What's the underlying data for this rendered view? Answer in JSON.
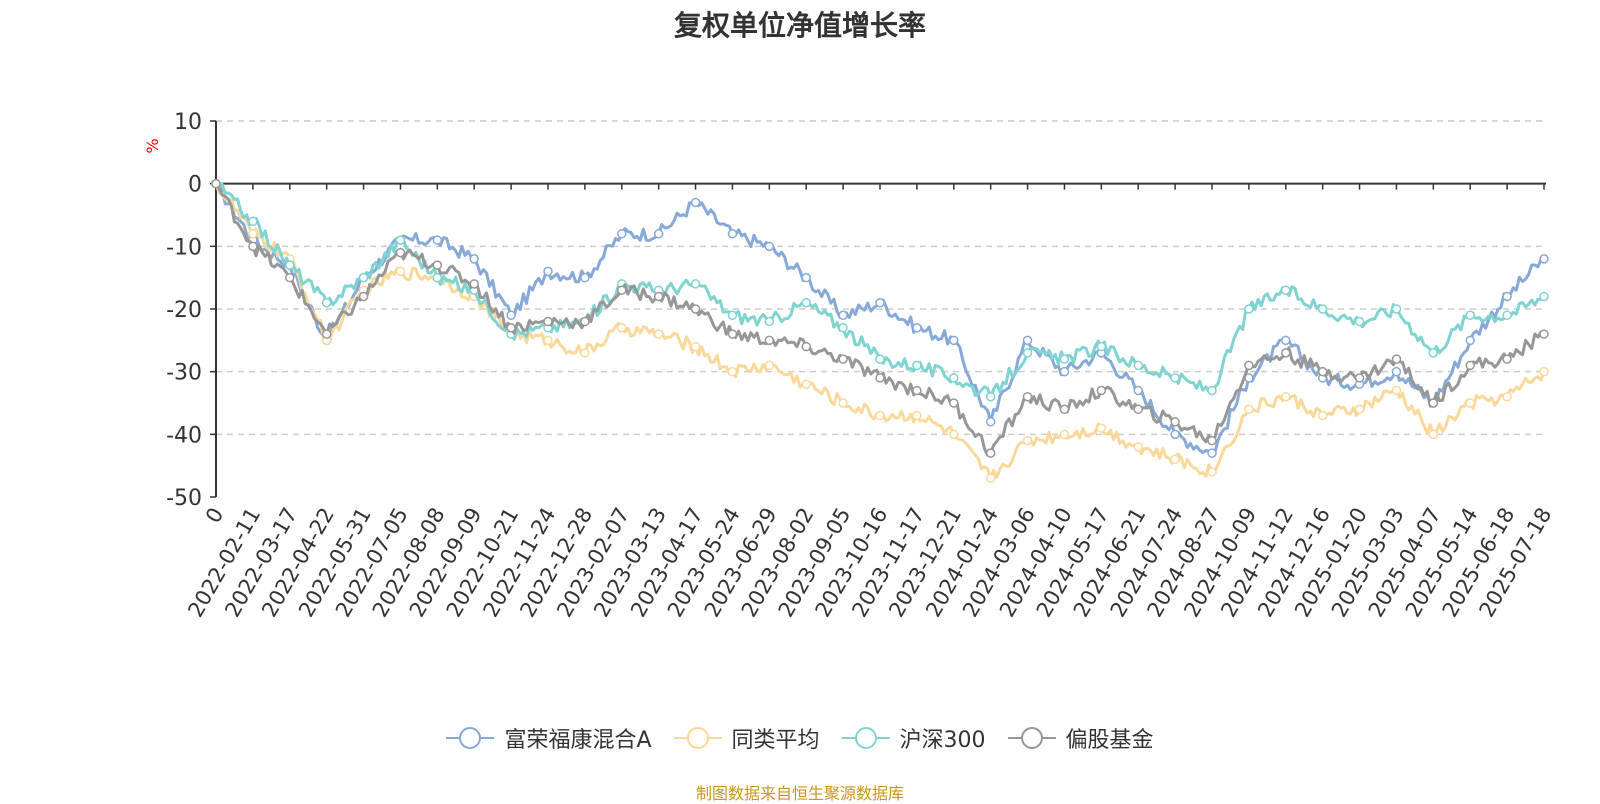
{
  "title": "复权单位净值增长率",
  "source_note": "制图数据来自恒生聚源数据库",
  "chart_data": {
    "type": "line",
    "title": "复权单位净值增长率",
    "ylabel": "%",
    "ylim": [
      -50,
      10
    ],
    "yticks": [
      10,
      0,
      -10,
      -20,
      -30,
      -40,
      -50
    ],
    "grid": true,
    "legend_position": "bottom",
    "x": [
      "0",
      "2022-02-11",
      "2022-03-17",
      "2022-04-22",
      "2022-05-31",
      "2022-07-05",
      "2022-08-08",
      "2022-09-09",
      "2022-10-21",
      "2022-11-24",
      "2022-12-28",
      "2023-02-07",
      "2023-03-13",
      "2023-04-17",
      "2023-05-24",
      "2023-06-29",
      "2023-08-02",
      "2023-09-05",
      "2023-10-16",
      "2023-11-17",
      "2023-12-21",
      "2024-01-24",
      "2024-03-06",
      "2024-04-10",
      "2024-05-17",
      "2024-06-21",
      "2024-07-24",
      "2024-08-27",
      "2024-10-09",
      "2024-11-12",
      "2024-12-16",
      "2025-01-20",
      "2025-03-03",
      "2025-04-07",
      "2025-05-14",
      "2025-06-18",
      "2025-07-18"
    ],
    "series": [
      {
        "name": "富荣福康混合A",
        "color": "#87a9d8",
        "values": [
          0,
          -9,
          -13,
          -25,
          -15,
          -9,
          -9,
          -12,
          -21,
          -14,
          -15,
          -8,
          -8,
          -3,
          -8,
          -10,
          -15,
          -21,
          -19,
          -23,
          -25,
          -38,
          -25,
          -30,
          -27,
          -33,
          -40,
          -43,
          -31,
          -25,
          -31,
          -32,
          -30,
          -35,
          -25,
          -18,
          -12
        ]
      },
      {
        "name": "同类平均",
        "color": "#fad89a",
        "values": [
          0,
          -8,
          -12,
          -25,
          -17,
          -14,
          -15,
          -18,
          -24,
          -25,
          -27,
          -23,
          -24,
          -26,
          -30,
          -29,
          -32,
          -35,
          -37,
          -37,
          -40,
          -47,
          -41,
          -40,
          -39,
          -42,
          -44,
          -46,
          -36,
          -34,
          -37,
          -36,
          -33,
          -40,
          -35,
          -34,
          -30
        ]
      },
      {
        "name": "沪深300",
        "color": "#7fd3d1",
        "values": [
          0,
          -6,
          -13,
          -19,
          -15,
          -9,
          -15,
          -17,
          -24,
          -23,
          -22,
          -16,
          -17,
          -16,
          -21,
          -22,
          -19,
          -23,
          -28,
          -29,
          -31,
          -34,
          -27,
          -28,
          -26,
          -29,
          -31,
          -33,
          -20,
          -17,
          -20,
          -22,
          -20,
          -27,
          -21,
          -21,
          -18
        ]
      },
      {
        "name": "偏股基金",
        "color": "#979797",
        "values": [
          0,
          -10,
          -15,
          -24,
          -18,
          -11,
          -13,
          -16,
          -23,
          -22,
          -22,
          -17,
          -18,
          -20,
          -24,
          -25,
          -26,
          -28,
          -31,
          -33,
          -35,
          -43,
          -34,
          -36,
          -33,
          -36,
          -38,
          -41,
          -29,
          -27,
          -30,
          -31,
          -28,
          -35,
          -29,
          -28,
          -24
        ]
      }
    ]
  }
}
